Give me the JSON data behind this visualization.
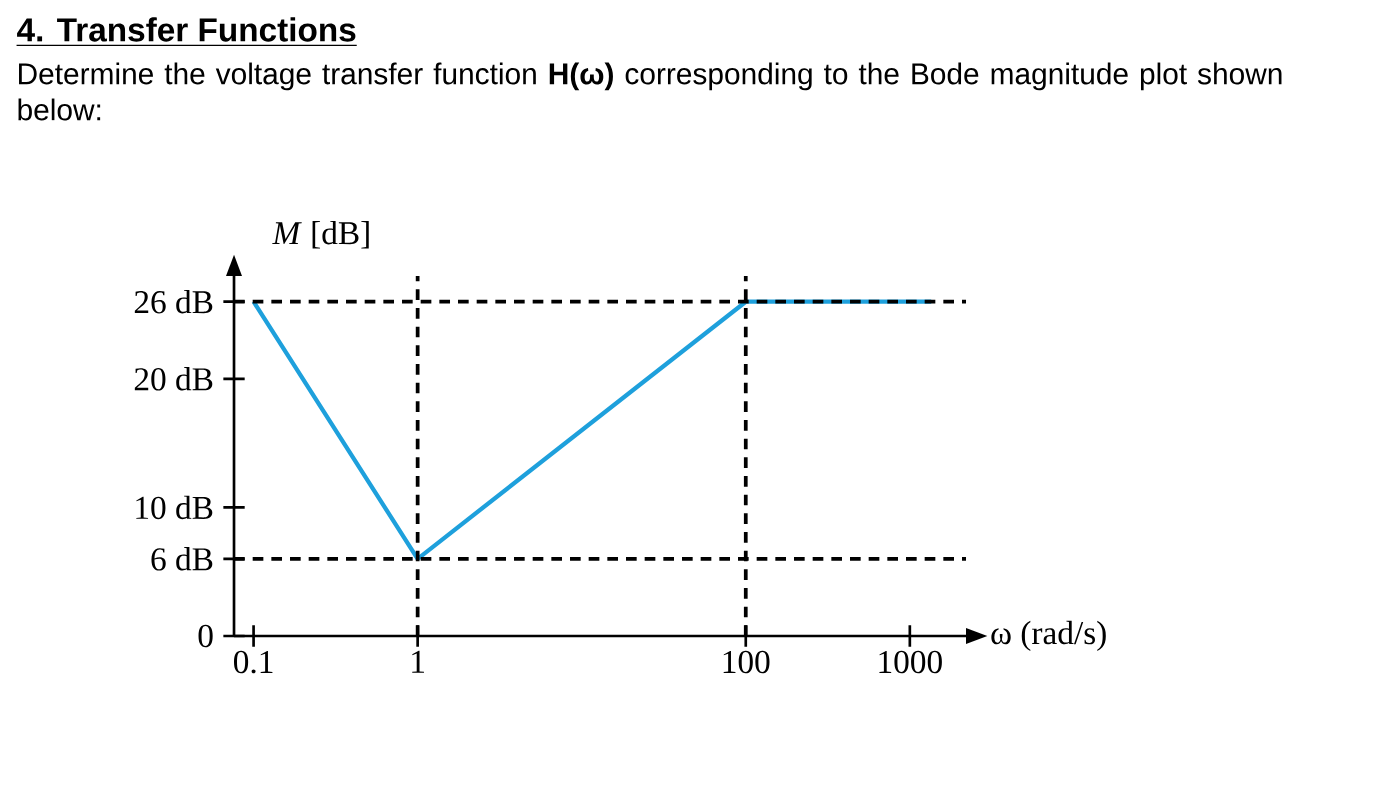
{
  "chart_data": {
    "type": "line",
    "title": "4. Transfer Functions",
    "subtitle": "Determine the voltage transfer function **H(ω)** corresponding to the Bode magnitude plot shown below:",
    "xlabel": "ω (rad/s)",
    "ylabel": "*M* [dB]",
    "log": "x",
    "x": [
      0.1,
      1,
      100,
      1350
    ],
    "series": [
      {
        "color": "#1ea0dc",
        "values": [
          26,
          6,
          26,
          26
        ]
      }
    ],
    "xlim": [
      0.076,
      2200
    ],
    "ylim": [
      0,
      28
    ],
    "xticks": [
      0.1,
      1,
      100,
      1000
    ],
    "yticks": [
      {
        "value": 0,
        "label": "0"
      },
      {
        "value": 6,
        "label": "6 dB"
      },
      {
        "value": 10,
        "label": "10 dB"
      },
      {
        "value": 20,
        "label": "20 dB"
      },
      {
        "value": 26,
        "label": "26 dB"
      }
    ],
    "ref_lines": [
      {
        "axis": "x",
        "value": 1,
        "line_style": "dashed",
        "color": "#000000"
      },
      {
        "axis": "x",
        "value": 100,
        "line_style": "dashed",
        "color": "#000000"
      },
      {
        "axis": "y",
        "value": 6,
        "line_style": "dashed",
        "color": "#000000"
      },
      {
        "axis": "y",
        "value": 26,
        "line_style": "dashed",
        "color": "#000000"
      }
    ],
    "marker": "none",
    "line_style": "solid",
    "grid": false
  }
}
